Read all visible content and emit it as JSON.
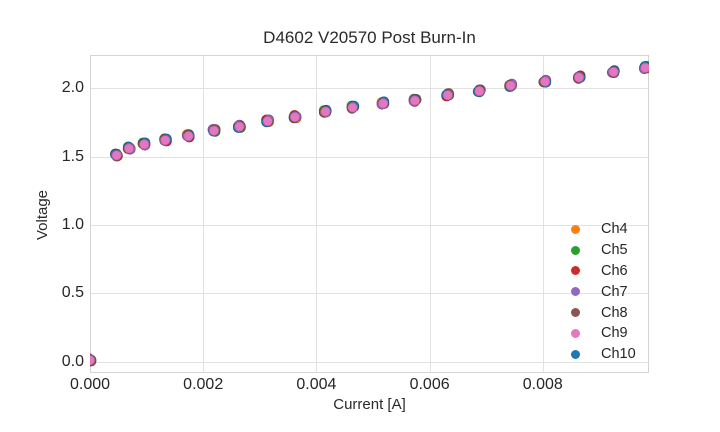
{
  "chart_data": {
    "type": "scatter",
    "title": "D4602 V20570 Post Burn-In",
    "xlabel": "Current [A]",
    "ylabel": "Voltage",
    "xlim": [
      0,
      0.009876
    ],
    "ylim": [
      -0.084,
      2.244
    ],
    "xticks": [
      0,
      0.002,
      0.004,
      0.006,
      0.008
    ],
    "xticklabels": [
      "0.000",
      "0.002",
      "0.004",
      "0.006",
      "0.008"
    ],
    "yticks": [
      0,
      0.5,
      1.0,
      1.5,
      2.0
    ],
    "yticklabels": [
      "0.0",
      "0.5",
      "1.0",
      "1.5",
      "2.0"
    ],
    "grid": true,
    "grid_color": "#e2e2e2",
    "border_color": "#d4d4d4",
    "background": "#ffffff",
    "legend_position": "inside lower right",
    "marker_style": "filled circle",
    "x": [
      0.0,
      0.00047,
      0.00069,
      0.00096,
      0.00133,
      0.00174,
      0.00219,
      0.00264,
      0.00314,
      0.00362,
      0.00416,
      0.00464,
      0.00518,
      0.00574,
      0.00632,
      0.00688,
      0.00743,
      0.00804,
      0.00864,
      0.00925,
      0.00981
    ],
    "series": [
      {
        "name": "Ch4",
        "color": "#ff7f0e",
        "values": [
          0.01,
          1.51,
          1.56,
          1.59,
          1.62,
          1.65,
          1.69,
          1.72,
          1.76,
          1.79,
          1.83,
          1.86,
          1.89,
          1.91,
          1.95,
          1.98,
          2.02,
          2.05,
          2.08,
          2.12,
          2.15
        ]
      },
      {
        "name": "Ch5",
        "color": "#2ca02c",
        "values": [
          0.01,
          1.51,
          1.56,
          1.59,
          1.62,
          1.65,
          1.69,
          1.72,
          1.76,
          1.79,
          1.83,
          1.86,
          1.89,
          1.91,
          1.95,
          1.98,
          2.02,
          2.05,
          2.08,
          2.12,
          2.15
        ]
      },
      {
        "name": "Ch6",
        "color": "#d62728",
        "values": [
          0.01,
          1.51,
          1.56,
          1.59,
          1.62,
          1.65,
          1.69,
          1.72,
          1.76,
          1.79,
          1.83,
          1.86,
          1.89,
          1.91,
          1.95,
          1.98,
          2.02,
          2.05,
          2.08,
          2.12,
          2.15
        ]
      },
      {
        "name": "Ch7",
        "color": "#9467bd",
        "values": [
          0.01,
          1.51,
          1.56,
          1.59,
          1.62,
          1.65,
          1.69,
          1.72,
          1.76,
          1.79,
          1.83,
          1.86,
          1.89,
          1.91,
          1.95,
          1.98,
          2.02,
          2.05,
          2.08,
          2.12,
          2.15
        ]
      },
      {
        "name": "Ch8",
        "color": "#8c564b",
        "values": [
          0.01,
          1.51,
          1.56,
          1.59,
          1.62,
          1.65,
          1.69,
          1.72,
          1.76,
          1.79,
          1.83,
          1.86,
          1.89,
          1.91,
          1.95,
          1.98,
          2.02,
          2.05,
          2.08,
          2.12,
          2.15
        ]
      },
      {
        "name": "Ch9",
        "color": "#e377c2",
        "values": [
          0.01,
          1.51,
          1.56,
          1.59,
          1.62,
          1.65,
          1.69,
          1.72,
          1.76,
          1.79,
          1.83,
          1.86,
          1.89,
          1.91,
          1.95,
          1.98,
          2.02,
          2.05,
          2.08,
          2.12,
          2.15
        ]
      },
      {
        "name": "Ch10",
        "color": "#1f77b4",
        "values": [
          0.01,
          1.51,
          1.56,
          1.59,
          1.62,
          1.65,
          1.69,
          1.72,
          1.76,
          1.79,
          1.83,
          1.86,
          1.89,
          1.91,
          1.95,
          1.98,
          2.02,
          2.05,
          2.08,
          2.12,
          2.15
        ]
      }
    ],
    "top_series": "Ch9"
  }
}
